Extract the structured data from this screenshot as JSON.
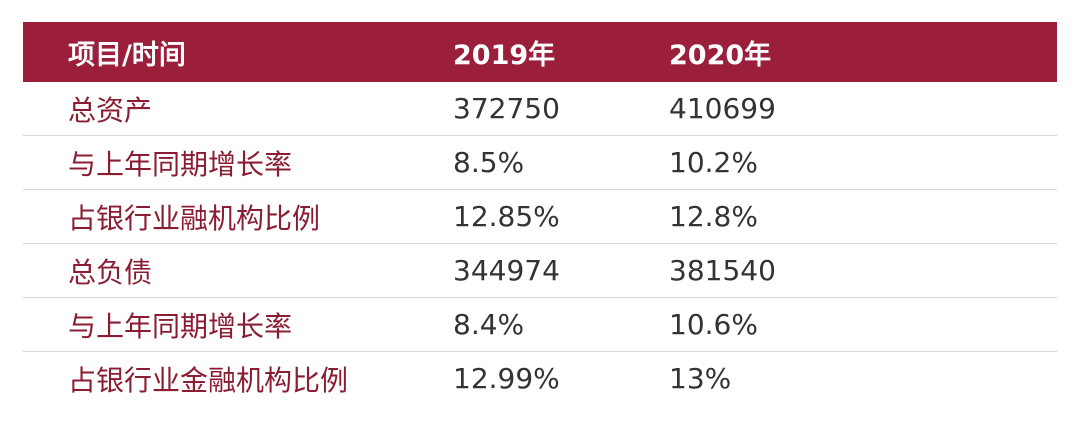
{
  "table": {
    "header": {
      "item": "项目/时间",
      "year1": "2019年",
      "year2": "2020年"
    },
    "rows": [
      {
        "label": "总资产",
        "v2019": "372750",
        "v2020": "410699"
      },
      {
        "label": "与上年同期增长率",
        "v2019": "8.5%",
        "v2020": "10.2%"
      },
      {
        "label": "占银行业融机构比例",
        "v2019": "12.85%",
        "v2020": "12.8%"
      },
      {
        "label": "总负债",
        "v2019": "344974",
        "v2020": "381540"
      },
      {
        "label": "与上年同期增长率",
        "v2019": "8.4%",
        "v2020": "10.6%"
      },
      {
        "label": "占银行业金融机构比例",
        "v2019": "12.99%",
        "v2020": "13%"
      }
    ]
  },
  "colors": {
    "header_background": "#9b1f3b",
    "header_text": "#ffffff",
    "label_text": "#8b1d33",
    "value_text": "#333333",
    "row_divider": "#d6d6d6"
  }
}
